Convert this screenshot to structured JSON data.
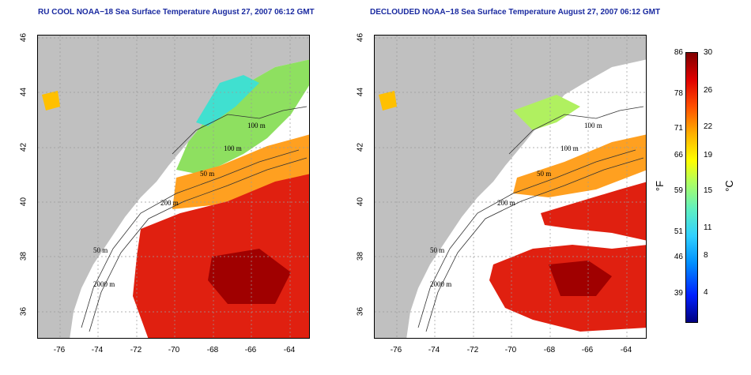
{
  "panels": [
    {
      "title": "RU COOL NOAA−18 Sea Surface Temperature August 27, 2007 06:12 GMT"
    },
    {
      "title": "DECLOUDED NOAA−18 Sea Surface Temperature August 27, 2007 06:12 GMT"
    }
  ],
  "axes": {
    "lon_ticks": [
      "-76",
      "-74",
      "-72",
      "-70",
      "-68",
      "-66",
      "-64"
    ],
    "lat_ticks": [
      "46",
      "44",
      "42",
      "40",
      "38",
      "36"
    ]
  },
  "contour_labels": [
    "100 m",
    "100 m",
    "50 m",
    "200 m",
    "50 m",
    "2000 m"
  ],
  "colorbar": {
    "fahrenheit_ticks": [
      "86",
      "78",
      "71",
      "66",
      "59",
      "51",
      "46",
      "39"
    ],
    "celsius_ticks": [
      "30",
      "26",
      "22",
      "19",
      "15",
      "11",
      "8",
      "4"
    ],
    "f_unit": "°F",
    "c_unit": "°C",
    "low_color": "#000080",
    "high_color": "#800000"
  }
}
